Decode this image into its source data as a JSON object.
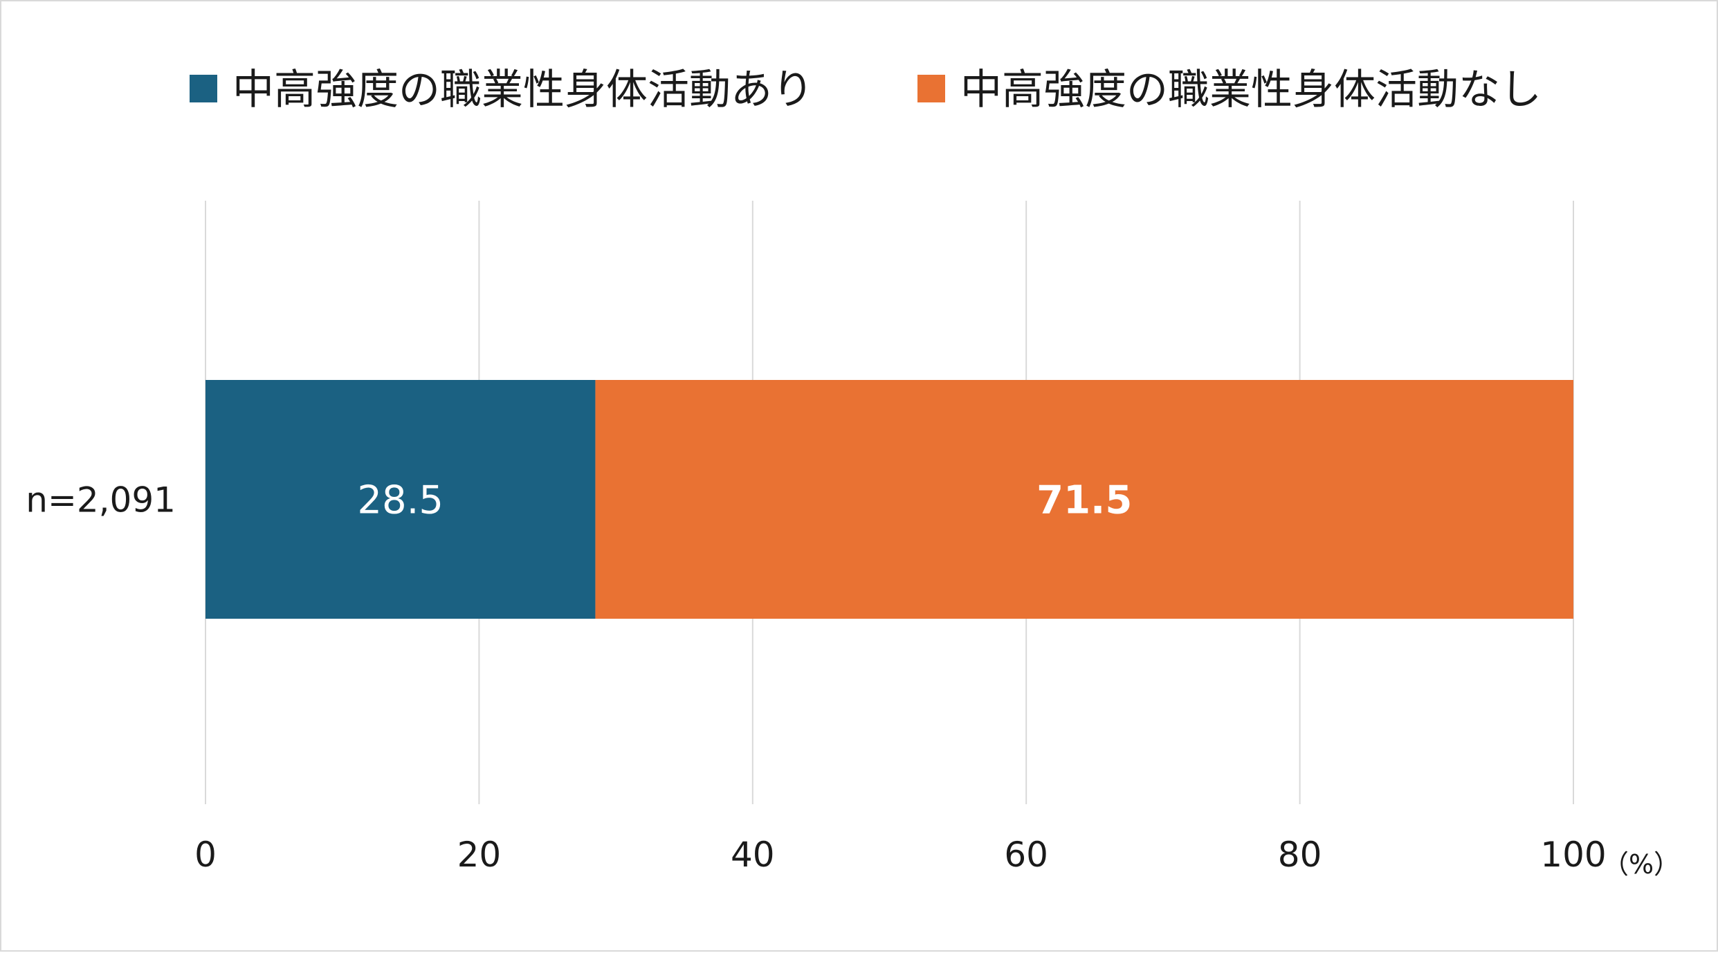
{
  "chart_data": {
    "type": "bar",
    "orientation": "horizontal",
    "stacked": true,
    "categories": [
      "n=2,091"
    ],
    "series": [
      {
        "name": "中高強度の職業性身体活動あり",
        "values": [
          28.5
        ],
        "color": "#1b6182",
        "label_color": "#ffffff",
        "label_bold": false
      },
      {
        "name": "中高強度の職業性身体活動なし",
        "values": [
          71.5
        ],
        "color": "#e97233",
        "label_color": "#ffffff",
        "label_bold": true
      }
    ],
    "xlim": [
      0,
      100
    ],
    "xticks": [
      "0",
      "20",
      "40",
      "60",
      "80",
      "100"
    ],
    "xtick_values": [
      0,
      20,
      40,
      60,
      80,
      100
    ],
    "x_unit": "（%）",
    "grid": "vertical",
    "legend_position": "top"
  }
}
